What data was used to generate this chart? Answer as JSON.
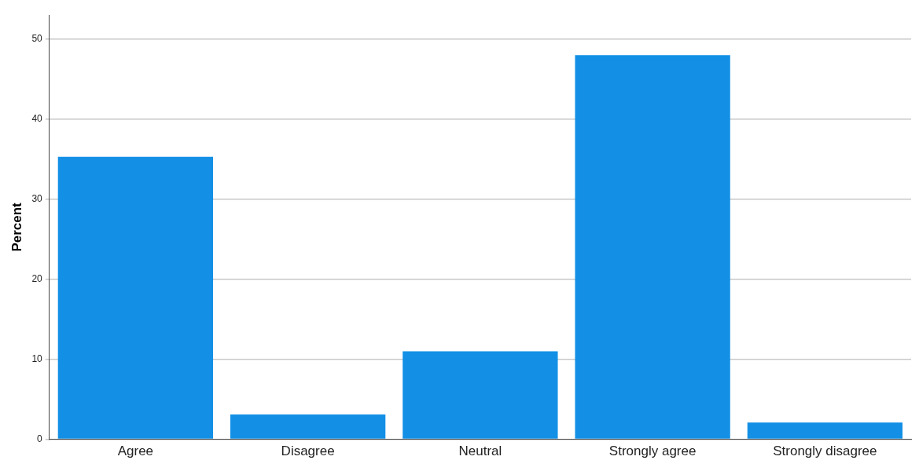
{
  "chart_data": {
    "type": "bar",
    "ylabel": "Percent",
    "categories": [
      "Agree",
      "Disagree",
      "Neutral",
      "Strongly agree",
      "Strongly disagree"
    ],
    "values": [
      35.3,
      3.1,
      11.0,
      48.0,
      2.1
    ],
    "color": "#1390e6",
    "ylim": [
      0,
      53
    ],
    "yticks": [
      0,
      10,
      20,
      30,
      40,
      50
    ],
    "grid": "y",
    "legend": false
  }
}
